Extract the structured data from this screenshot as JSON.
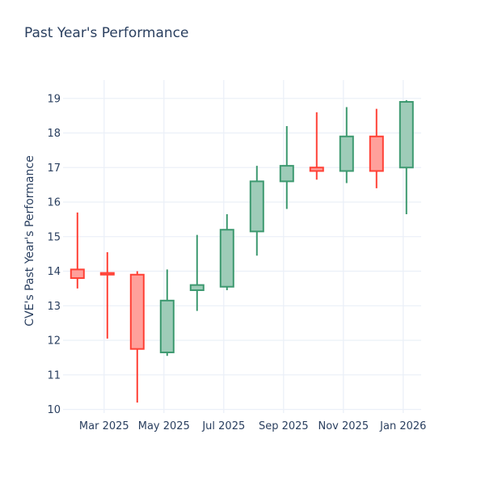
{
  "chart_data": {
    "type": "candlestick",
    "title": "Past Year's Performance",
    "ylabel": "CVE's Past Year's Performance",
    "xlabel": "",
    "grid": true,
    "legend": false,
    "ylim": [
      9.9,
      19.55
    ],
    "yticks": [
      10,
      11,
      12,
      13,
      14,
      15,
      16,
      17,
      18,
      19
    ],
    "xticks": [
      {
        "label": "Mar 2025",
        "month_index": 1
      },
      {
        "label": "May 2025",
        "month_index": 3
      },
      {
        "label": "Jul 2025",
        "month_index": 5
      },
      {
        "label": "Sep 2025",
        "month_index": 7
      },
      {
        "label": "Nov 2025",
        "month_index": 9
      },
      {
        "label": "Jan 2026",
        "month_index": 11
      }
    ],
    "candles": [
      {
        "x": "Feb 2025",
        "open": 14.05,
        "high": 15.7,
        "low": 13.5,
        "close": 13.8
      },
      {
        "x": "Mar 2025",
        "open": 13.95,
        "high": 14.55,
        "low": 12.05,
        "close": 13.9
      },
      {
        "x": "Apr 2025",
        "open": 13.9,
        "high": 14.0,
        "low": 10.2,
        "close": 11.75
      },
      {
        "x": "May 2025",
        "open": 11.65,
        "high": 14.05,
        "low": 11.55,
        "close": 13.15
      },
      {
        "x": "Jun 2025",
        "open": 13.45,
        "high": 15.05,
        "low": 12.85,
        "close": 13.6
      },
      {
        "x": "Jul 2025",
        "open": 13.55,
        "high": 15.65,
        "low": 13.45,
        "close": 15.2
      },
      {
        "x": "Aug 2025",
        "open": 15.15,
        "high": 17.05,
        "low": 14.45,
        "close": 16.6
      },
      {
        "x": "Sep 2025",
        "open": 16.6,
        "high": 18.2,
        "low": 15.8,
        "close": 17.05
      },
      {
        "x": "Oct 2025",
        "open": 17.0,
        "high": 18.6,
        "low": 16.65,
        "close": 16.9
      },
      {
        "x": "Nov 2025",
        "open": 16.9,
        "high": 18.75,
        "low": 16.55,
        "close": 17.9
      },
      {
        "x": "Dec 2025",
        "open": 17.9,
        "high": 18.7,
        "low": 16.4,
        "close": 16.9
      },
      {
        "x": "Jan 2026",
        "open": 17.0,
        "high": 18.95,
        "low": 15.65,
        "close": 18.9
      }
    ],
    "colors": {
      "increasing_line": "#3d9970",
      "increasing_fill": "#9eccb8",
      "decreasing_line": "#ff4136",
      "decreasing_fill": "#ffa09b",
      "text": "#2a3f5f",
      "grid": "#ebf0f8",
      "background": "#ffffff"
    }
  }
}
